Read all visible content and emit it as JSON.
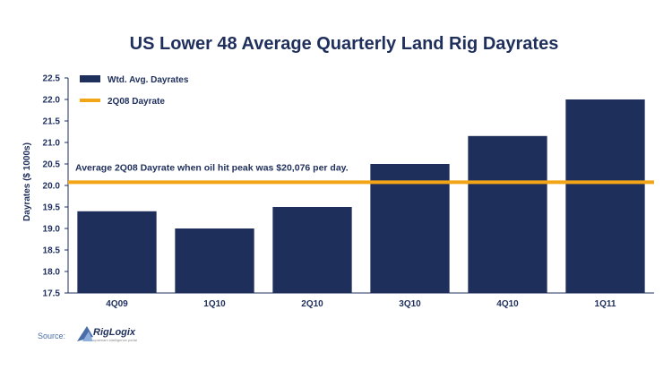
{
  "chart_data": {
    "type": "bar",
    "title": "US Lower 48 Average Quarterly Land Rig Dayrates",
    "xlabel": "",
    "ylabel": "Dayrates ($ 1000s)",
    "categories": [
      "4Q09",
      "1Q10",
      "2Q10",
      "3Q10",
      "4Q10",
      "1Q11"
    ],
    "series": [
      {
        "name": "Wtd. Avg. Dayrates",
        "values": [
          19.4,
          19.0,
          19.5,
          20.5,
          21.15,
          22.0
        ]
      }
    ],
    "reference_lines": [
      {
        "name": "2Q08 Dayrate",
        "value": 20.076
      }
    ],
    "annotation": "Average 2Q08 Dayrate when oil hit peak was $20,076 per day.",
    "ylim": [
      17.5,
      22.5
    ],
    "yticks": [
      "17.5",
      "18.0",
      "18.5",
      "19.0",
      "19.5",
      "20.0",
      "20.5",
      "21.0",
      "21.5",
      "22.0",
      "22.5"
    ],
    "legend_position": "top-left",
    "grid": false
  },
  "colors": {
    "bar": "#1f2f5c",
    "reference": "#f2a516",
    "title": "#1f2f5c",
    "axis": "#1f2f5c",
    "source": "#4a6da8"
  },
  "source": {
    "label": "Source:",
    "logo_text": "RigLogix",
    "logo_tagline": "upstream intelligence portal"
  }
}
